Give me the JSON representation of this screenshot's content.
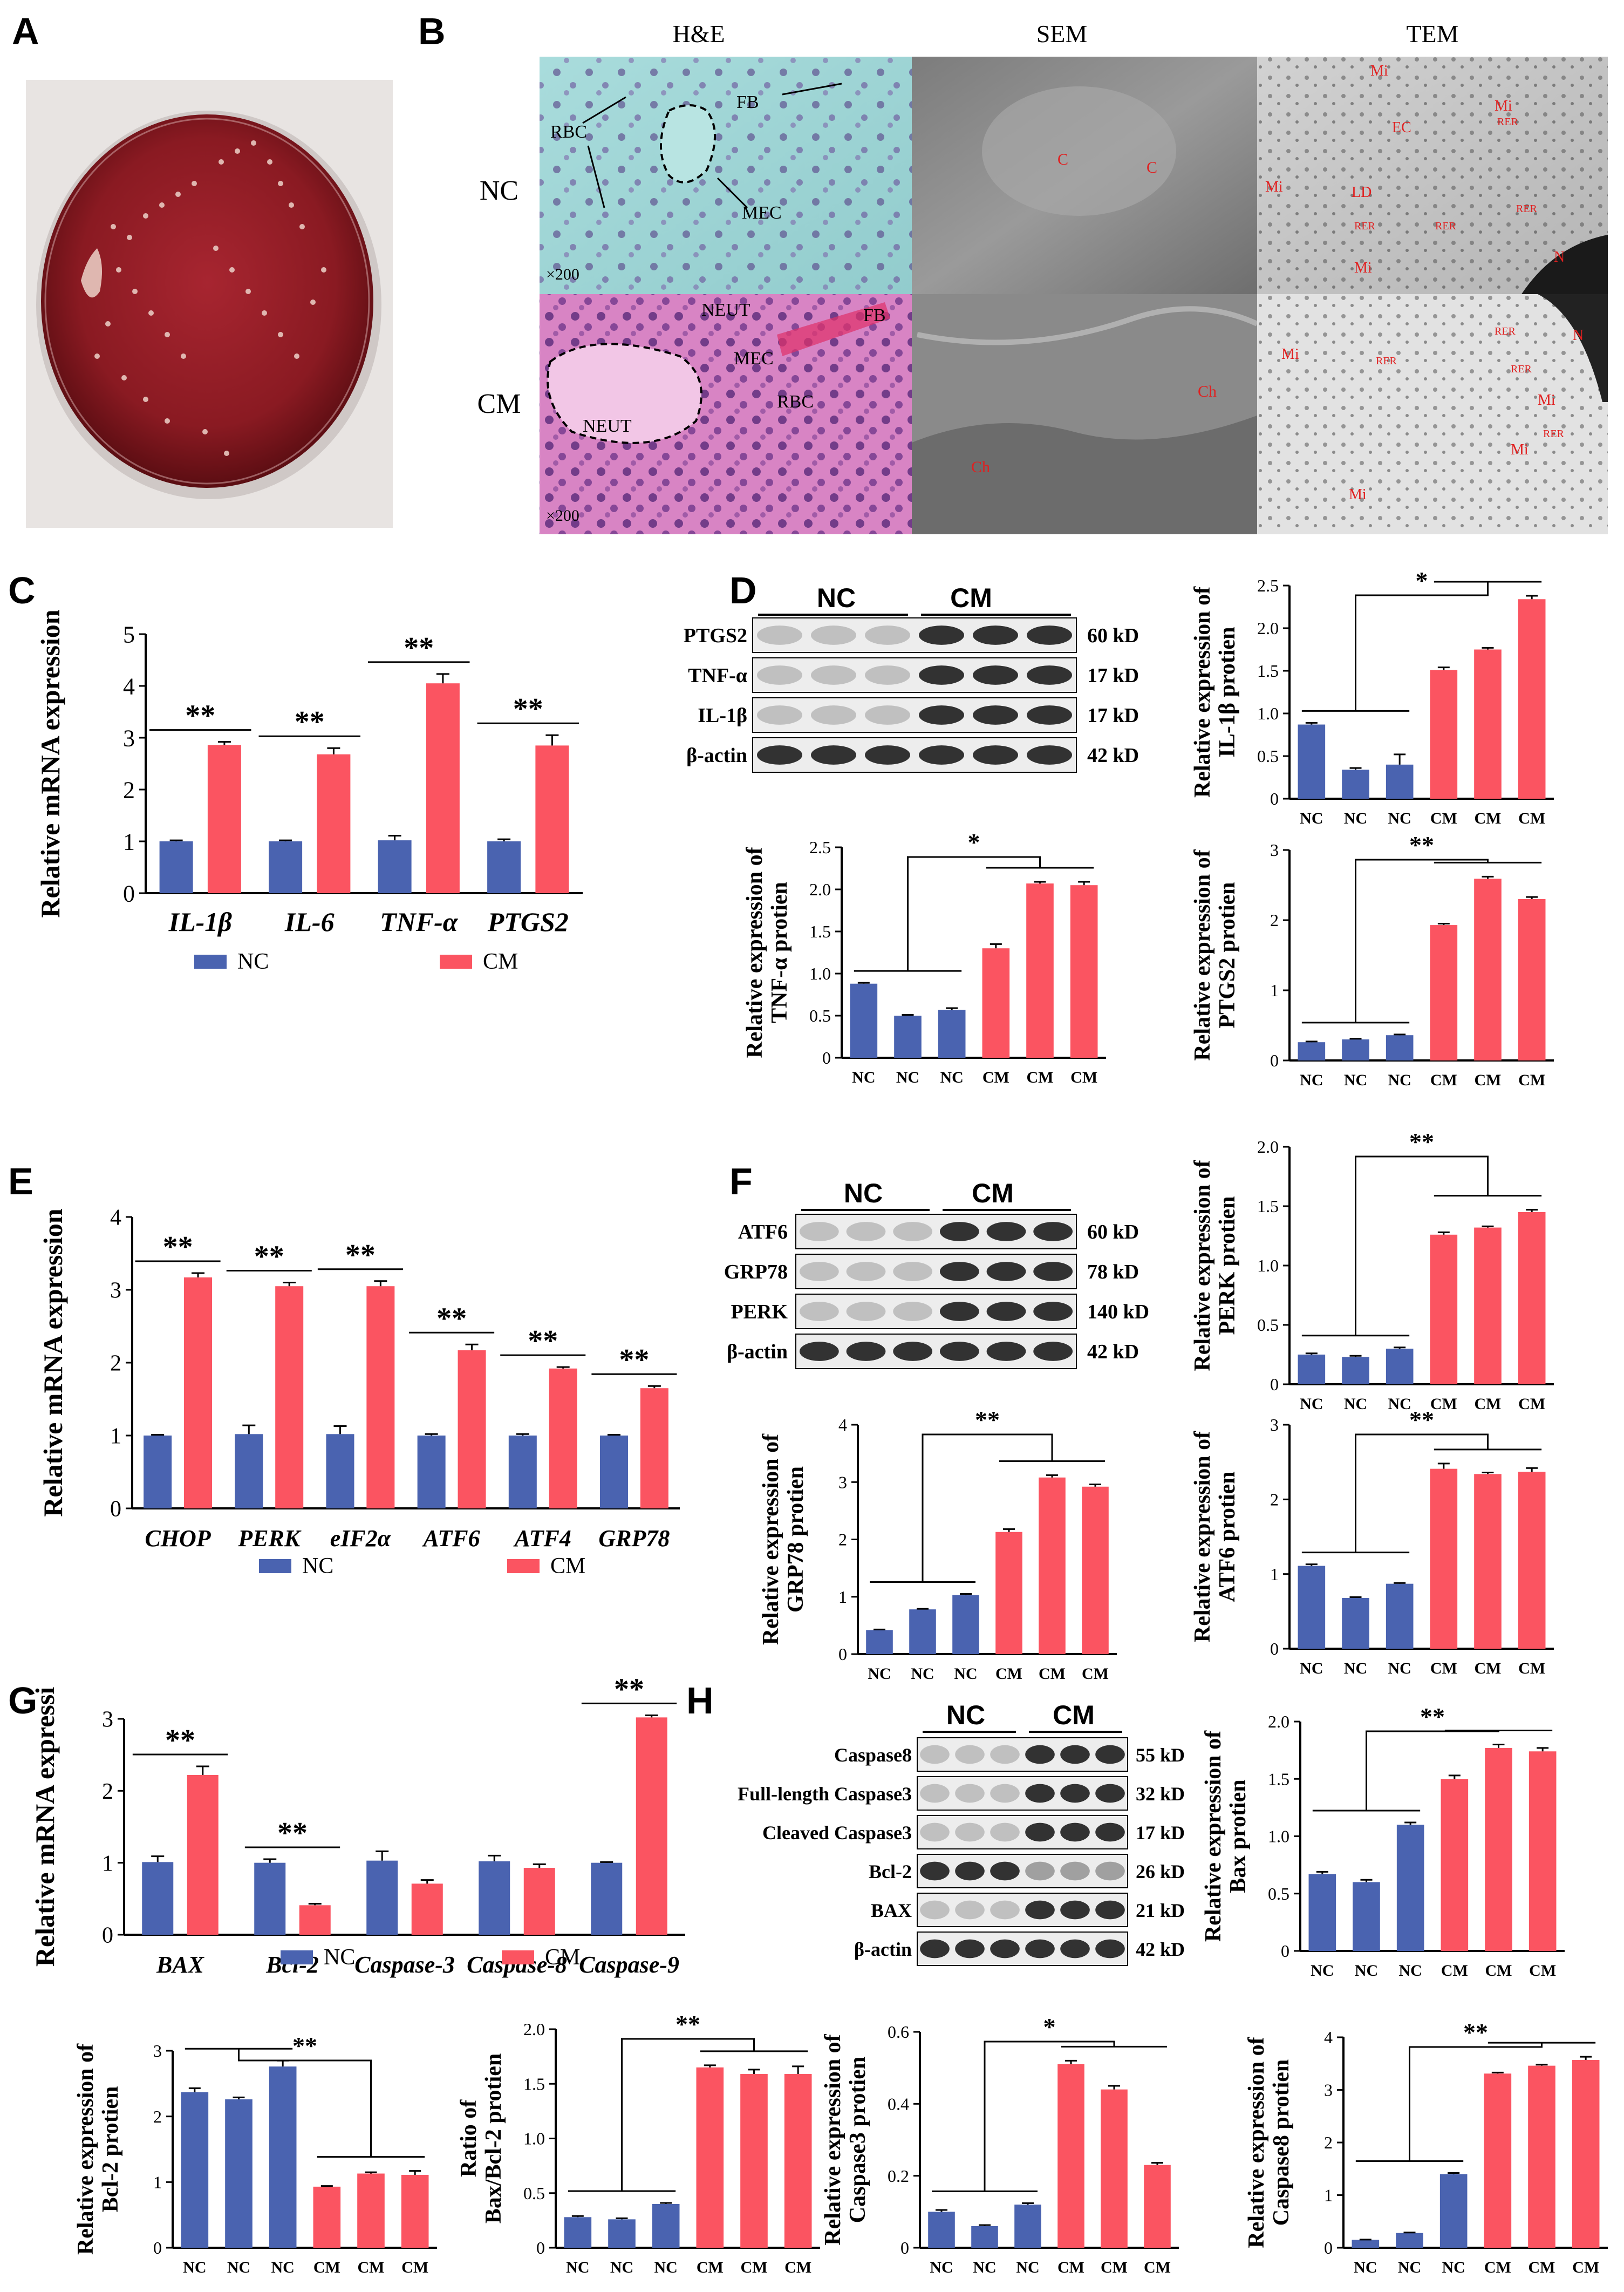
{
  "panel_letters": [
    "A",
    "B",
    "C",
    "D",
    "E",
    "F",
    "G",
    "H"
  ],
  "legend": {
    "nc": "NC",
    "cm": "CM"
  },
  "colors": {
    "nc": "#4a63b0",
    "cm": "#fb5461",
    "axis": "#000000",
    "plate": "#8f1e24"
  },
  "panel_b": {
    "columns": [
      "H&E",
      "SEM",
      "TEM"
    ],
    "rows": [
      "NC",
      "CM"
    ],
    "mag": "×200",
    "he_nc_labels": [
      "RBC",
      "FB",
      "MEC"
    ],
    "he_cm_labels": [
      "NEUT",
      "FB",
      "MEC",
      "RBC",
      "NEUT"
    ],
    "sem_nc_labels": [
      "C",
      "C"
    ],
    "sem_cm_labels": [
      "Ch",
      "Ch"
    ],
    "tem_nc_labels": [
      "Mi",
      "Mi",
      "EC",
      "Mi",
      "RER",
      "LD",
      "RER",
      "RER",
      "RER",
      "Mi",
      "N"
    ],
    "tem_cm_labels": [
      "N",
      "Mi",
      "RER",
      "RER",
      "RER",
      "Mi",
      "RER",
      "Mi",
      "Mi"
    ]
  },
  "blot_d": {
    "groups": [
      "NC",
      "CM"
    ],
    "rows": [
      {
        "name": "PTGS2",
        "kd": "60 kD"
      },
      {
        "name": "TNF-α",
        "kd": "17 kD"
      },
      {
        "name": "IL-1β",
        "kd": "17 kD"
      },
      {
        "name": "β-actin",
        "kd": "42 kD"
      }
    ]
  },
  "blot_f": {
    "groups": [
      "NC",
      "CM"
    ],
    "rows": [
      {
        "name": "ATF6",
        "kd": "60 kD"
      },
      {
        "name": "GRP78",
        "kd": "78 kD"
      },
      {
        "name": "PERK",
        "kd": "140 kD"
      },
      {
        "name": "β-actin",
        "kd": "42 kD"
      }
    ]
  },
  "blot_h": {
    "groups": [
      "NC",
      "CM"
    ],
    "rows": [
      {
        "name": "Caspase8",
        "kd": "55 kD"
      },
      {
        "name": "Full-length Caspase3",
        "kd": "32 kD"
      },
      {
        "name": "Cleaved Caspase3",
        "kd": "17 kD"
      },
      {
        "name": "Bcl-2",
        "kd": "26 kD"
      },
      {
        "name": "BAX",
        "kd": "21 kD"
      },
      {
        "name": "β-actin",
        "kd": "42 kD"
      }
    ]
  },
  "chart_data": [
    {
      "id": "C",
      "type": "bar",
      "ylabel": "Relative mRNA expression",
      "ylim": [
        0,
        5
      ],
      "yticks": [
        0,
        1,
        2,
        3,
        4,
        5
      ],
      "categories": [
        "IL-1β",
        "IL-6",
        "TNF-α",
        "PTGS2"
      ],
      "series": [
        {
          "name": "NC",
          "values": [
            1.0,
            1.0,
            1.02,
            1.0
          ],
          "err": [
            0.02,
            0.02,
            0.09,
            0.04
          ]
        },
        {
          "name": "CM",
          "values": [
            2.86,
            2.68,
            4.05,
            2.85
          ],
          "err": [
            0.06,
            0.12,
            0.18,
            0.2
          ]
        }
      ],
      "annotations": [
        "**",
        "**",
        "**",
        "**"
      ]
    },
    {
      "id": "D1",
      "type": "bar",
      "ylabel": "Relative expression of\nIL-1β protien",
      "ylim": [
        0,
        2.5
      ],
      "yticks": [
        0,
        0.5,
        1.0,
        1.5,
        2.0,
        2.5
      ],
      "categories": [
        "NC",
        "NC",
        "NC",
        "CM",
        "CM",
        "CM"
      ],
      "values": [
        0.87,
        0.34,
        0.4,
        1.51,
        1.75,
        2.34
      ],
      "err": [
        0.02,
        0.02,
        0.12,
        0.03,
        0.02,
        0.04
      ],
      "sig": "*"
    },
    {
      "id": "D2",
      "type": "bar",
      "ylabel": "Relative expression of\nTNF-α protien",
      "ylim": [
        0,
        2.5
      ],
      "yticks": [
        0,
        0.5,
        1.0,
        1.5,
        2.0,
        2.5
      ],
      "categories": [
        "NC",
        "NC",
        "NC",
        "CM",
        "CM",
        "CM"
      ],
      "values": [
        0.88,
        0.5,
        0.57,
        1.3,
        2.07,
        2.05
      ],
      "err": [
        0.01,
        0.01,
        0.02,
        0.05,
        0.02,
        0.04
      ],
      "sig": "*"
    },
    {
      "id": "D3",
      "type": "bar",
      "ylabel": "Relative expression of\nPTGS2 protien",
      "ylim": [
        0,
        3
      ],
      "yticks": [
        0,
        1,
        2,
        3
      ],
      "categories": [
        "NC",
        "NC",
        "NC",
        "CM",
        "CM",
        "CM"
      ],
      "values": [
        0.26,
        0.3,
        0.36,
        1.93,
        2.59,
        2.3
      ],
      "err": [
        0.01,
        0.01,
        0.01,
        0.02,
        0.03,
        0.03
      ],
      "sig": "**"
    },
    {
      "id": "E",
      "type": "bar",
      "ylabel": "Relative mRNA expression",
      "ylim": [
        0,
        4
      ],
      "yticks": [
        0,
        1,
        2,
        3,
        4
      ],
      "categories": [
        "CHOP",
        "PERK",
        "eIF2α",
        "ATF6",
        "ATF4",
        "GRP78"
      ],
      "series": [
        {
          "name": "NC",
          "values": [
            1.0,
            1.02,
            1.02,
            1.0,
            1.0,
            1.0
          ],
          "err": [
            0.01,
            0.12,
            0.11,
            0.02,
            0.02,
            0.01
          ]
        },
        {
          "name": "CM",
          "values": [
            3.17,
            3.05,
            3.05,
            2.17,
            1.92,
            1.65
          ],
          "err": [
            0.06,
            0.05,
            0.07,
            0.08,
            0.02,
            0.03
          ]
        }
      ],
      "annotations": [
        "**",
        "**",
        "**",
        "**",
        "**",
        "**"
      ]
    },
    {
      "id": "F1",
      "type": "bar",
      "ylabel": "Relative expression of\nPERK protien",
      "ylim": [
        0,
        2.0
      ],
      "yticks": [
        0,
        0.5,
        1.0,
        1.5,
        2.0
      ],
      "categories": [
        "NC",
        "NC",
        "NC",
        "CM",
        "CM",
        "CM"
      ],
      "values": [
        0.25,
        0.23,
        0.3,
        1.26,
        1.32,
        1.45
      ],
      "err": [
        0.01,
        0.01,
        0.01,
        0.02,
        0.01,
        0.02
      ],
      "sig": "**"
    },
    {
      "id": "F2",
      "type": "bar",
      "ylabel": "Relative expression of\nGRP78 protien",
      "ylim": [
        0,
        4
      ],
      "yticks": [
        0,
        1,
        2,
        3,
        4
      ],
      "categories": [
        "NC",
        "NC",
        "NC",
        "CM",
        "CM",
        "CM"
      ],
      "values": [
        0.42,
        0.78,
        1.03,
        2.13,
        3.08,
        2.92
      ],
      "err": [
        0.01,
        0.01,
        0.02,
        0.05,
        0.04,
        0.04
      ],
      "sig": "**"
    },
    {
      "id": "F3",
      "type": "bar",
      "ylabel": "Relative expression of\nATF6 protien",
      "ylim": [
        0,
        3
      ],
      "yticks": [
        0,
        1,
        2,
        3
      ],
      "categories": [
        "NC",
        "NC",
        "NC",
        "CM",
        "CM",
        "CM"
      ],
      "values": [
        1.11,
        0.68,
        0.87,
        2.41,
        2.34,
        2.37
      ],
      "err": [
        0.02,
        0.01,
        0.01,
        0.07,
        0.02,
        0.05
      ],
      "sig": "**"
    },
    {
      "id": "G",
      "type": "bar",
      "ylabel": "Relative mRNA expressi",
      "ylim": [
        0,
        3
      ],
      "yticks": [
        0,
        1,
        2,
        3
      ],
      "categories": [
        "BAX",
        "Bcl-2",
        "Caspase-3",
        "Caspase-8",
        "Caspase-9"
      ],
      "series": [
        {
          "name": "NC",
          "values": [
            1.01,
            1.0,
            1.03,
            1.02,
            1.0
          ],
          "err": [
            0.08,
            0.05,
            0.13,
            0.08,
            0.01
          ]
        },
        {
          "name": "CM",
          "values": [
            2.22,
            0.41,
            0.71,
            0.93,
            3.02
          ],
          "err": [
            0.12,
            0.02,
            0.05,
            0.05,
            0.03
          ]
        }
      ],
      "annotations": [
        "**",
        "**",
        "",
        "",
        "**"
      ]
    },
    {
      "id": "H1",
      "type": "bar",
      "ylabel": "Relative expression of\nBax protien",
      "ylim": [
        0,
        2.0
      ],
      "yticks": [
        0,
        0.5,
        1.0,
        1.5,
        2.0
      ],
      "categories": [
        "NC",
        "NC",
        "NC",
        "CM",
        "CM",
        "CM"
      ],
      "values": [
        0.67,
        0.6,
        1.1,
        1.5,
        1.77,
        1.74
      ],
      "err": [
        0.02,
        0.02,
        0.02,
        0.03,
        0.03,
        0.03
      ],
      "sig": "**"
    },
    {
      "id": "H2",
      "type": "bar",
      "ylabel": "Relative expression of\nBcl-2 protien",
      "ylim": [
        0,
        3
      ],
      "yticks": [
        0,
        1,
        2,
        3
      ],
      "categories": [
        "NC",
        "NC",
        "NC",
        "CM",
        "CM",
        "CM"
      ],
      "values": [
        2.37,
        2.26,
        2.76,
        0.93,
        1.13,
        1.11
      ],
      "err": [
        0.06,
        0.03,
        0.09,
        0.01,
        0.02,
        0.06
      ],
      "sig": "**"
    },
    {
      "id": "H3",
      "type": "bar",
      "ylabel": "Ratio of\nBax/Bcl-2 protien",
      "ylim": [
        0,
        2.0
      ],
      "yticks": [
        0,
        0.5,
        1.0,
        1.5,
        2.0
      ],
      "categories": [
        "NC",
        "NC",
        "NC",
        "CM",
        "CM",
        "CM"
      ],
      "values": [
        0.28,
        0.26,
        0.4,
        1.65,
        1.59,
        1.59
      ],
      "err": [
        0.01,
        0.01,
        0.01,
        0.02,
        0.04,
        0.07
      ],
      "sig": "**"
    },
    {
      "id": "H4",
      "type": "bar",
      "ylabel": "Relative expression of\nCaspase3 protien",
      "ylim": [
        0,
        0.6
      ],
      "yticks": [
        0,
        0.2,
        0.4,
        0.6
      ],
      "categories": [
        "NC",
        "NC",
        "NC",
        "CM",
        "CM",
        "CM"
      ],
      "values": [
        0.1,
        0.06,
        0.12,
        0.51,
        0.44,
        0.23
      ],
      "err": [
        0.005,
        0.003,
        0.004,
        0.01,
        0.01,
        0.006
      ],
      "sig": "*"
    },
    {
      "id": "H5",
      "type": "bar",
      "ylabel": "Relative expression of\nCaspase8 protien",
      "ylim": [
        0,
        4
      ],
      "yticks": [
        0,
        1,
        2,
        3,
        4
      ],
      "categories": [
        "NC",
        "NC",
        "NC",
        "CM",
        "CM",
        "CM"
      ],
      "values": [
        0.15,
        0.28,
        1.4,
        3.31,
        3.46,
        3.57
      ],
      "err": [
        0.005,
        0.01,
        0.02,
        0.02,
        0.02,
        0.06
      ],
      "sig": "**"
    }
  ]
}
